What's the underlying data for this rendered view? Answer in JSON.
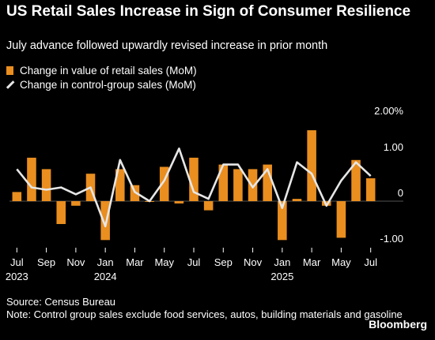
{
  "header": {
    "title": "US Retail Sales Increase in Sign of Consumer Resilience",
    "subtitle": "July advance followed upwardly revised increase in prior month"
  },
  "legend": {
    "bar_label": "Change in value of retail sales (MoM)",
    "line_label": "Change in control-group sales (MoM)"
  },
  "footer": {
    "source": "Source: Census Bureau",
    "note": "Note: Control group sales exclude food services, autos, building materials and gasoline",
    "brand": "Bloomberg"
  },
  "colors": {
    "bar": "#e98e1f",
    "line": "#e6e6e6",
    "background": "#000000"
  },
  "chart_data": {
    "type": "bar",
    "x": [
      "Jul 2023",
      "Aug 2023",
      "Sep 2023",
      "Oct 2023",
      "Nov 2023",
      "Dec 2023",
      "Jan 2024",
      "Feb 2024",
      "Mar 2024",
      "Apr 2024",
      "May 2024",
      "Jun 2024",
      "Jul 2024",
      "Aug 2024",
      "Sep 2024",
      "Oct 2024",
      "Nov 2024",
      "Dec 2024",
      "Jan 2025",
      "Feb 2025",
      "Mar 2025",
      "Apr 2025",
      "May 2025",
      "Jun 2025",
      "Jul 2025"
    ],
    "series": [
      {
        "name": "Change in value of retail sales (MoM)",
        "type": "bar",
        "values": [
          0.2,
          0.95,
          0.7,
          -0.5,
          -0.1,
          0.6,
          -0.85,
          0.7,
          0.35,
          0.0,
          0.75,
          -0.05,
          0.95,
          -0.2,
          0.8,
          0.7,
          0.7,
          0.8,
          -0.85,
          0.05,
          1.55,
          -0.1,
          -0.8,
          0.9,
          0.5
        ]
      },
      {
        "name": "Change in control-group sales (MoM)",
        "type": "line",
        "values": [
          0.7,
          0.3,
          0.25,
          0.3,
          0.15,
          0.3,
          -0.55,
          0.9,
          0.2,
          0.0,
          0.45,
          1.15,
          0.2,
          0.05,
          0.8,
          0.8,
          0.3,
          0.7,
          -0.15,
          0.85,
          0.6,
          -0.1,
          0.45,
          0.85,
          0.55
        ]
      }
    ],
    "x_ticks": [
      {
        "label": "Jul",
        "year": "2023",
        "index": 0
      },
      {
        "label": "Sep",
        "year": "",
        "index": 2
      },
      {
        "label": "Nov",
        "year": "",
        "index": 4
      },
      {
        "label": "Jan",
        "year": "2024",
        "index": 6
      },
      {
        "label": "Mar",
        "year": "",
        "index": 8
      },
      {
        "label": "May",
        "year": "",
        "index": 10
      },
      {
        "label": "Jul",
        "year": "",
        "index": 12
      },
      {
        "label": "Sep",
        "year": "",
        "index": 14
      },
      {
        "label": "Nov",
        "year": "",
        "index": 16
      },
      {
        "label": "Jan",
        "year": "2025",
        "index": 18
      },
      {
        "label": "Mar",
        "year": "",
        "index": 20
      },
      {
        "label": "May",
        "year": "",
        "index": 22
      },
      {
        "label": "Jul",
        "year": "",
        "index": 24
      }
    ],
    "y_ticks": [
      {
        "value": 2,
        "label": "2.00%"
      },
      {
        "value": 1,
        "label": "1.00"
      },
      {
        "value": 0,
        "label": "0"
      },
      {
        "value": -1,
        "label": "-1.00"
      }
    ],
    "ylim": [
      -1.2,
      2.2
    ],
    "grid": false,
    "legend_position": "top-left"
  }
}
